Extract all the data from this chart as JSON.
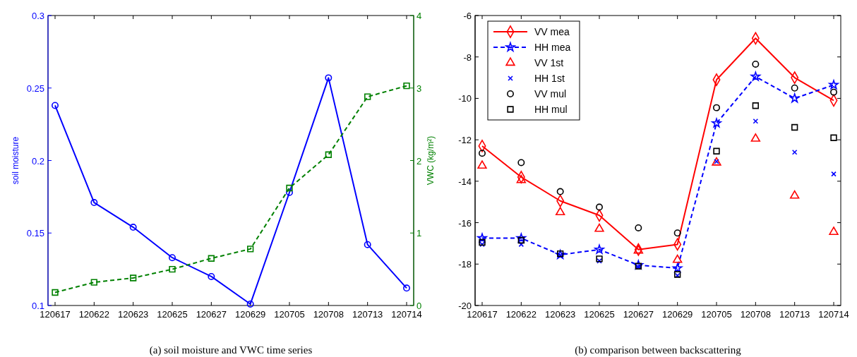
{
  "chart_data": [
    {
      "type": "line",
      "categories": [
        "120617",
        "120622",
        "120623",
        "120625",
        "120627",
        "120629",
        "120705",
        "120708",
        "120713",
        "120714"
      ],
      "ylabel": "soil moisture",
      "y2label": "VWC (kg/m²)",
      "ylim": [
        0.1,
        0.3
      ],
      "yticks": [
        0.1,
        0.15,
        0.2,
        0.25,
        0.3
      ],
      "y2lim": [
        0,
        4
      ],
      "y2ticks": [
        0,
        1,
        2,
        3,
        4
      ],
      "legend": false,
      "annotations": [
        "(a) soil moisture and VWC time series"
      ],
      "series": [
        {
          "color": "#0000ff",
          "marker": "circle",
          "line_style": "solid",
          "values": [
            0.238,
            0.171,
            0.154,
            0.133,
            0.12,
            0.101,
            0.178,
            0.257,
            0.142,
            0.112
          ]
        },
        {
          "color": "#008000",
          "marker": "square",
          "line_style": "dashed",
          "axis": "y2",
          "values": [
            0.18,
            0.32,
            0.38,
            0.5,
            0.65,
            0.78,
            1.62,
            2.08,
            2.88,
            3.03
          ]
        }
      ]
    },
    {
      "type": "line",
      "categories": [
        "120617",
        "120622",
        "120623",
        "120625",
        "120627",
        "120629",
        "120705",
        "120708",
        "120713",
        "120714"
      ],
      "ylim": [
        -20,
        -6
      ],
      "yticks": [
        -20,
        -18,
        -16,
        -14,
        -12,
        -10,
        -8,
        -6
      ],
      "legend": "top left",
      "annotations": [
        "(b) comparison between backscattering"
      ],
      "series": [
        {
          "name": "VV mea",
          "color": "#ff0000",
          "marker": "diamond",
          "line_style": "solid",
          "values": [
            -12.3,
            -13.8,
            -14.95,
            -15.65,
            -17.3,
            -17.05,
            -9.1,
            -7.1,
            -9.0,
            -10.1
          ]
        },
        {
          "name": "HH mea",
          "color": "#0000ff",
          "marker": "star",
          "line_style": "dashed",
          "values": [
            -16.75,
            -16.75,
            -17.55,
            -17.3,
            -18.05,
            -18.2,
            -11.2,
            -8.95,
            -10.0,
            -9.35
          ]
        },
        {
          "name": "VV 1st",
          "type": "scatter",
          "color": "#ff0000",
          "marker": "triangle",
          "values": [
            -13.25,
            -13.95,
            -15.5,
            -16.3,
            -17.35,
            -17.8,
            -13.1,
            -11.95,
            -14.7,
            -16.45
          ]
        },
        {
          "name": "HH 1st",
          "type": "scatter",
          "color": "#0000ff",
          "marker": "cross",
          "values": [
            -17.05,
            -17.05,
            -17.6,
            -17.85,
            -18.15,
            -18.55,
            -13.05,
            -11.1,
            -12.6,
            -13.65
          ]
        },
        {
          "name": "VV mul",
          "type": "scatter",
          "color": "#000000",
          "marker": "circle",
          "values": [
            -12.65,
            -13.1,
            -14.5,
            -15.25,
            -16.25,
            -16.5,
            -10.45,
            -8.35,
            -9.5,
            -9.7
          ]
        },
        {
          "name": "HH mul",
          "type": "scatter",
          "color": "#000000",
          "marker": "square",
          "values": [
            -16.95,
            -16.85,
            -17.5,
            -17.75,
            -18.1,
            -18.5,
            -12.55,
            -10.35,
            -11.4,
            -11.9
          ]
        }
      ]
    }
  ]
}
